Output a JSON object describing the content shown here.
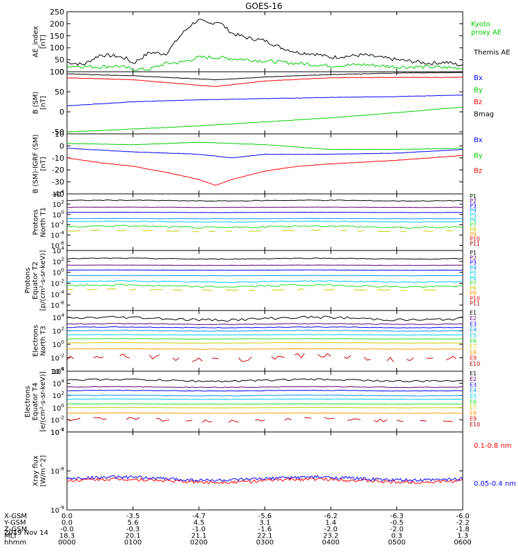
{
  "title": "GOES-16",
  "date_label": "2019 Nov 14",
  "x_axis": {
    "ticks": [
      "0000",
      "0100",
      "0200",
      "0300",
      "0400",
      "0500",
      "0600"
    ],
    "coords": [
      {
        "label": "X-GSM",
        "values": [
          "0.0",
          "-3.5",
          "-4.7",
          "-5.6",
          "-6.2",
          "-6.3",
          "-6.0"
        ]
      },
      {
        "label": "Y-GSM",
        "values": [
          "0.0",
          "5.6",
          "4.5",
          "3.1",
          "1.4",
          "-0.5",
          "-2.2"
        ]
      },
      {
        "label": "Z-GSM",
        "values": [
          "-0.0",
          "-0.3",
          "-1.0",
          "-1.6",
          "-2.0",
          "-2.0",
          "-1.8"
        ]
      },
      {
        "label": "MLT",
        "values": [
          "18.3",
          "20.1",
          "21.1",
          "22.1",
          "23.2",
          "0.3",
          "1.3"
        ]
      },
      {
        "label": "hhmm",
        "values": [
          "0000",
          "0100",
          "0200",
          "0300",
          "0400",
          "0500",
          "0600"
        ]
      }
    ]
  },
  "colors": {
    "black": "#000000",
    "red": "#ff0000",
    "blue": "#0000ff",
    "green": "#00cc00",
    "axis": "#000000"
  },
  "chart_data": [
    {
      "type": "line",
      "ylabel_lines": [
        "AE_index",
        "[nT]"
      ],
      "ylim": [
        0,
        250
      ],
      "yticks": [
        0,
        50,
        100,
        150,
        200,
        250
      ],
      "legend": [
        {
          "text": "Kyoto",
          "color": "#00cc00"
        },
        {
          "text": "proxy AE",
          "color": "#00cc00"
        },
        {
          "text": "Themis AE",
          "color": "#000000"
        }
      ],
      "series": [
        {
          "name": "Themis AE",
          "color": "#000000",
          "x": [
            0,
            0.25,
            0.5,
            0.75,
            0.9,
            1.0,
            1.25,
            1.5,
            1.75,
            1.9,
            2.0,
            2.15,
            2.3,
            2.5,
            2.75,
            3.0,
            3.25,
            3.5,
            3.75,
            4.0,
            4.5,
            5.0,
            5.5,
            5.75,
            6.0
          ],
          "y": [
            40,
            30,
            70,
            65,
            55,
            35,
            80,
            75,
            160,
            200,
            215,
            200,
            210,
            160,
            140,
            130,
            100,
            80,
            75,
            60,
            70,
            50,
            35,
            40,
            25
          ]
        },
        {
          "name": "Kyoto proxy AE",
          "color": "#00cc00",
          "x": [
            0,
            0.5,
            0.75,
            1.0,
            1.25,
            1.5,
            1.75,
            2.0,
            2.25,
            2.5,
            2.75,
            3.0,
            3.25,
            3.5,
            4.0,
            4.5,
            5.0,
            5.5,
            6.0
          ],
          "y": [
            25,
            20,
            25,
            10,
            10,
            35,
            40,
            60,
            60,
            55,
            50,
            45,
            40,
            35,
            25,
            30,
            20,
            20,
            15
          ]
        }
      ]
    },
    {
      "type": "line",
      "ylabel_lines": [
        "B (SM)",
        "[nT]"
      ],
      "ylim": [
        -55,
        100
      ],
      "yticks": [
        -50,
        0,
        50,
        100
      ],
      "legend": [
        {
          "text": "Bx",
          "color": "#0000ff"
        },
        {
          "text": "By",
          "color": "#00cc00"
        },
        {
          "text": "Bz",
          "color": "#ff0000"
        },
        {
          "text": "Bmag",
          "color": "#000000"
        }
      ],
      "series": [
        {
          "name": "Bmag",
          "color": "#000000",
          "x": [
            0,
            1,
            2.25,
            3,
            4,
            5,
            6
          ],
          "y": [
            95,
            90,
            80,
            87,
            93,
            97,
            98
          ]
        },
        {
          "name": "Bz",
          "color": "#ff0000",
          "x": [
            0,
            1,
            2.25,
            3,
            4,
            5,
            6
          ],
          "y": [
            85,
            80,
            63,
            77,
            85,
            86,
            86
          ]
        },
        {
          "name": "Bx",
          "color": "#0000ff",
          "x": [
            0,
            1,
            2,
            3,
            4,
            5,
            6
          ],
          "y": [
            15,
            25,
            30,
            33,
            36,
            38,
            42
          ]
        },
        {
          "name": "By",
          "color": "#00cc00",
          "x": [
            0,
            1,
            2,
            3,
            4,
            5,
            6
          ],
          "y": [
            -50,
            -43,
            -35,
            -25,
            -15,
            -2,
            12
          ]
        }
      ]
    },
    {
      "type": "line",
      "ylabel_lines": [
        "B (SM)-IGRF (SM)",
        "[nT]"
      ],
      "ylim": [
        -40,
        10
      ],
      "yticks": [
        -40,
        -30,
        -20,
        -10,
        0,
        10
      ],
      "legend": [
        {
          "text": "Bx",
          "color": "#0000ff"
        },
        {
          "text": "By",
          "color": "#00cc00"
        },
        {
          "text": "Bz",
          "color": "#ff0000"
        }
      ],
      "series": [
        {
          "name": "By",
          "color": "#00cc00",
          "x": [
            0,
            1,
            2,
            2.5,
            3,
            3.5,
            4,
            5,
            6
          ],
          "y": [
            2,
            1,
            3,
            2,
            1,
            -1,
            -3,
            -3,
            -2
          ]
        },
        {
          "name": "Bx",
          "color": "#0000ff",
          "x": [
            0,
            1,
            2,
            2.5,
            3,
            4,
            5,
            6
          ],
          "y": [
            -2,
            -5,
            -7,
            -10,
            -7,
            -7,
            -6,
            -3
          ]
        },
        {
          "name": "Bz",
          "color": "#ff0000",
          "x": [
            0,
            0.5,
            1,
            1.5,
            2,
            2.25,
            2.5,
            3,
            3.5,
            4,
            5,
            6
          ],
          "y": [
            -10,
            -14,
            -17,
            -22,
            -28,
            -33,
            -28,
            -21,
            -17,
            -15,
            -12,
            -8
          ]
        }
      ]
    },
    {
      "type": "line",
      "log": true,
      "ylabel_lines": [
        "Protons",
        "North T1"
      ],
      "ylim_exp": [
        -7,
        4
      ],
      "tick_exps": [
        -6,
        -4,
        -2,
        0,
        2,
        4
      ],
      "channel_labels": [
        {
          "text": "P1",
          "color": "#000000"
        },
        {
          "text": "P2",
          "color": "#5a0070"
        },
        {
          "text": "P3",
          "color": "#0000ff"
        },
        {
          "text": "P4",
          "color": "#0090ff"
        },
        {
          "text": "P5",
          "color": "#00c8ff"
        },
        {
          "text": "P6",
          "color": "#00d0c0"
        },
        {
          "text": "P7",
          "color": "#22dd22"
        },
        {
          "text": "P8",
          "color": "#cccc00"
        },
        {
          "text": "P9",
          "color": "#ff9900"
        },
        {
          "text": "P10",
          "color": "#ee0000"
        },
        {
          "text": "P11",
          "color": "#aa0000"
        }
      ],
      "series": [
        {
          "name": "P1",
          "color": "#000000",
          "level": 2.7,
          "wobble": 0.15
        },
        {
          "name": "P2",
          "color": "#5a0070",
          "level": 1.4,
          "wobble": 0.05
        },
        {
          "name": "P3",
          "color": "#0000ff",
          "level": 0.4,
          "wobble": 0.05
        },
        {
          "name": "P4",
          "color": "#0090ff",
          "level": -0.8,
          "wobble": 0.05
        },
        {
          "name": "P5",
          "color": "#00c8ff",
          "level": -1.4,
          "wobble": 0.15
        },
        {
          "name": "P6",
          "color": "#22dd22",
          "level": -2.4,
          "wobble": 0.35
        },
        {
          "name": "P7",
          "color": "#cccc00",
          "level": -3.2,
          "wobble": 0.2,
          "dashed": true
        }
      ]
    },
    {
      "type": "line",
      "log": true,
      "ylabel_lines": [
        "Protons",
        "Equator T2",
        "[p/(cm²-s-sr-keV)]"
      ],
      "ylim_exp": [
        -7,
        4
      ],
      "tick_exps": [
        -6,
        -4,
        -2,
        0,
        2,
        4
      ],
      "channel_labels": [
        {
          "text": "P1",
          "color": "#000000"
        },
        {
          "text": "P2",
          "color": "#5a0070"
        },
        {
          "text": "P3",
          "color": "#0000ff"
        },
        {
          "text": "P4",
          "color": "#0090ff"
        },
        {
          "text": "P5",
          "color": "#00c8ff"
        },
        {
          "text": "P6",
          "color": "#00d0c0"
        },
        {
          "text": "P7",
          "color": "#22dd22"
        },
        {
          "text": "P8",
          "color": "#cccc00"
        },
        {
          "text": "P9",
          "color": "#ff9900"
        },
        {
          "text": "P10",
          "color": "#ee0000"
        },
        {
          "text": "P11",
          "color": "#aa0000"
        }
      ],
      "series": [
        {
          "name": "P1",
          "color": "#000000",
          "level": 2.5,
          "wobble": 0.15
        },
        {
          "name": "P2",
          "color": "#5a0070",
          "level": 1.3,
          "wobble": 0.05
        },
        {
          "name": "P3",
          "color": "#0000ff",
          "level": 0.4,
          "wobble": 0.05
        },
        {
          "name": "P4",
          "color": "#0090ff",
          "level": -0.6,
          "wobble": 0.05
        },
        {
          "name": "P5",
          "color": "#00c8ff",
          "level": -1.7,
          "wobble": 0.2
        },
        {
          "name": "P6",
          "color": "#22dd22",
          "level": -2.5,
          "wobble": 0.35
        },
        {
          "name": "P7",
          "color": "#cccc00",
          "level": -3.2,
          "wobble": 0.2,
          "dashed": true
        }
      ]
    },
    {
      "type": "line",
      "log": true,
      "ylabel_lines": [
        "Electrons",
        "North T3"
      ],
      "ylim_exp": [
        -4,
        5
      ],
      "tick_exps": [
        -4,
        -2,
        0,
        2,
        4
      ],
      "channel_labels": [
        {
          "text": "E1",
          "color": "#000000"
        },
        {
          "text": "E2",
          "color": "#5a0070"
        },
        {
          "text": "E3",
          "color": "#0000ff"
        },
        {
          "text": "E4",
          "color": "#0090ff"
        },
        {
          "text": "E5",
          "color": "#00c8ff"
        },
        {
          "text": "E6",
          "color": "#22dd22"
        },
        {
          "text": "E7",
          "color": "#cccc00"
        },
        {
          "text": "E8",
          "color": "#ff9900"
        },
        {
          "text": "E9",
          "color": "#ee0000"
        },
        {
          "text": "E10",
          "color": "#aa0000"
        }
      ],
      "series": [
        {
          "name": "E1",
          "color": "#000000",
          "level": 3.8,
          "wobble": 0.4
        },
        {
          "name": "E2",
          "color": "#5a0070",
          "level": 3.0,
          "wobble": 0.1
        },
        {
          "name": "E3",
          "color": "#0000ff",
          "level": 2.5,
          "wobble": 0.1
        },
        {
          "name": "E4",
          "color": "#0090ff",
          "level": 2.0,
          "wobble": 0.1
        },
        {
          "name": "E5",
          "color": "#00c8ff",
          "level": 1.4,
          "wobble": 0.05
        },
        {
          "name": "E6",
          "color": "#22dd22",
          "level": 0.8,
          "wobble": 0.05
        },
        {
          "name": "E7",
          "color": "#cccc00",
          "level": 0.2,
          "wobble": 0.05
        },
        {
          "name": "E8",
          "color": "#ff9900",
          "level": -0.7,
          "wobble": 0.05
        },
        {
          "name": "E9",
          "color": "#cc0000",
          "level": -2.0,
          "wobble": 0.7,
          "dashed": true
        }
      ]
    },
    {
      "type": "line",
      "log": true,
      "ylabel_lines": [
        "Electrons",
        "Equator T4",
        "[e/(cm²-s-sr-keV)]"
      ],
      "ylim_exp": [
        -4,
        6
      ],
      "tick_exps": [
        -4,
        -2,
        0,
        2,
        4,
        6
      ],
      "channel_labels": [
        {
          "text": "E1",
          "color": "#000000"
        },
        {
          "text": "E2",
          "color": "#5a0070"
        },
        {
          "text": "E3",
          "color": "#0000ff"
        },
        {
          "text": "E4",
          "color": "#0090ff"
        },
        {
          "text": "E5",
          "color": "#00c8ff"
        },
        {
          "text": "E6",
          "color": "#22dd22"
        },
        {
          "text": "E7",
          "color": "#cccc00"
        },
        {
          "text": "E8",
          "color": "#ff9900"
        },
        {
          "text": "E9",
          "color": "#ee0000"
        },
        {
          "text": "E10",
          "color": "#aa0000"
        }
      ],
      "series": [
        {
          "name": "E1",
          "color": "#000000",
          "level": 4.5,
          "wobble": 0.3
        },
        {
          "name": "E2",
          "color": "#5a0070",
          "level": 3.4,
          "wobble": 0.1
        },
        {
          "name": "E3",
          "color": "#0000ff",
          "level": 2.8,
          "wobble": 0.1
        },
        {
          "name": "E4",
          "color": "#0090ff",
          "level": 2.0,
          "wobble": 0.1
        },
        {
          "name": "E5",
          "color": "#00c8ff",
          "level": 1.4,
          "wobble": 0.05
        },
        {
          "name": "E6",
          "color": "#22dd22",
          "level": 0.6,
          "wobble": 0.05
        },
        {
          "name": "E7",
          "color": "#cccc00",
          "level": 0.0,
          "wobble": 0.05
        },
        {
          "name": "E8",
          "color": "#ff9900",
          "level": -0.9,
          "wobble": 0.05
        },
        {
          "name": "E9",
          "color": "#cc0000",
          "level": -2.0,
          "wobble": 0.5,
          "dashed": true
        }
      ]
    },
    {
      "type": "line",
      "log": true,
      "ylabel_lines": [
        "Xray flux",
        "[W/m^2]"
      ],
      "ylim_exp": [
        -9,
        -7
      ],
      "tick_exps": [
        -9,
        -8,
        -7
      ],
      "legend": [
        {
          "text": "0.1-0.8 nm",
          "color": "#ff0000"
        },
        {
          "text": "0.05-0.4 nm",
          "color": "#0000ff"
        }
      ],
      "series": [
        {
          "name": "0.1-0.8 nm",
          "color": "#ff0000",
          "level": -8.25,
          "wobble": 0.08,
          "noisy": true
        },
        {
          "name": "0.05-0.4 nm",
          "color": "#0000ff",
          "level": -8.2,
          "wobble": 0.08,
          "noisy": true
        }
      ]
    }
  ]
}
